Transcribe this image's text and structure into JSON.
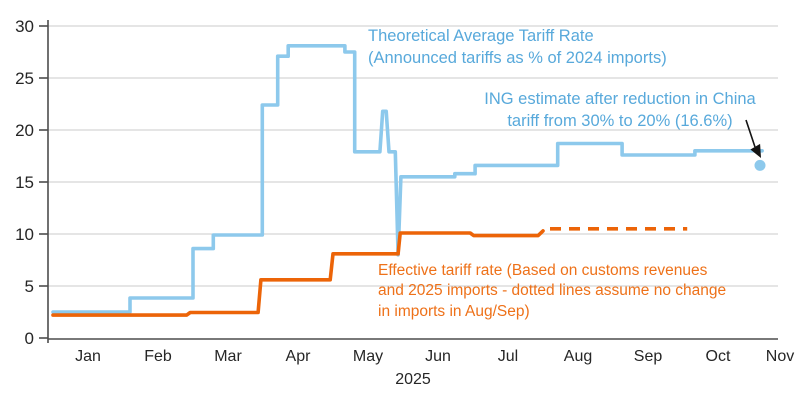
{
  "colors": {
    "blue_line": "#8DC9EC",
    "blue_text": "#58A9DB",
    "orange_line": "#EC6408",
    "orange_text": "#EE7119",
    "axis": "#4d4d4d",
    "grid": "#cbcbcb",
    "tick_text": "#262626",
    "arrow": "#141414"
  },
  "annotations": {
    "theoretical": {
      "line1": "Theoretical Average Tariff Rate",
      "line2": "(Announced tariffs as % of 2024 imports)"
    },
    "ing_estimate": {
      "line1": "ING estimate after reduction in China",
      "line2": "tariff from 30% to 20% (16.6%)"
    },
    "effective": {
      "line1": "Effective tariff rate (Based on customs revenues",
      "line2": "and 2025 imports - dotted lines assume no change",
      "line3": "in imports in Aug/Sep)"
    }
  },
  "chart_data": {
    "type": "line",
    "title": "",
    "x_unit_note": "x = months elapsed since 1 Jan 2025 (0 = Jan 1, 1 = Feb 1, ...)",
    "x_axis": {
      "tick_labels": [
        "Jan",
        "Feb",
        "Mar",
        "Apr",
        "May",
        "Jun",
        "Jul",
        "Aug",
        "Sep",
        "Oct",
        "Nov"
      ],
      "axis_label": "2025"
    },
    "y_axis": {
      "min": 0,
      "max": 30,
      "step": 5,
      "tick_labels": [
        "0",
        "5",
        "10",
        "15",
        "20",
        "25",
        "30"
      ]
    },
    "grid": true,
    "legend_position": "none (in-plot text annotations)",
    "series": [
      {
        "name": "Theoretical Average Tariff Rate (Announced tariffs as % of 2024 imports)",
        "style": "solid",
        "color_key": "blue_line",
        "points": [
          [
            0.0,
            2.5
          ],
          [
            1.1,
            2.5
          ],
          [
            1.1,
            3.85
          ],
          [
            2.0,
            3.85
          ],
          [
            2.0,
            8.6
          ],
          [
            2.29,
            8.6
          ],
          [
            2.29,
            9.9
          ],
          [
            2.99,
            9.9
          ],
          [
            2.99,
            22.4
          ],
          [
            3.21,
            22.4
          ],
          [
            3.21,
            27.1
          ],
          [
            3.36,
            27.1
          ],
          [
            3.36,
            28.1
          ],
          [
            4.17,
            28.1
          ],
          [
            4.17,
            27.5
          ],
          [
            4.31,
            27.5
          ],
          [
            4.31,
            17.9
          ],
          [
            4.67,
            17.9
          ],
          [
            4.71,
            21.8
          ],
          [
            4.76,
            21.8
          ],
          [
            4.8,
            17.9
          ],
          [
            4.89,
            17.9
          ],
          [
            4.93,
            8.0
          ],
          [
            4.97,
            15.5
          ],
          [
            5.74,
            15.5
          ],
          [
            5.74,
            15.8
          ],
          [
            6.03,
            15.8
          ],
          [
            6.03,
            16.6
          ],
          [
            7.21,
            16.6
          ],
          [
            7.21,
            18.7
          ],
          [
            8.13,
            18.7
          ],
          [
            8.13,
            17.6
          ],
          [
            9.17,
            17.6
          ],
          [
            9.17,
            18.0
          ],
          [
            10.13,
            18.0
          ]
        ]
      },
      {
        "name": "Effective tariff rate (Based on customs revenues and 2025 imports)",
        "style": "solid",
        "color_key": "orange_line",
        "points": [
          [
            0.0,
            2.2
          ],
          [
            1.91,
            2.2
          ],
          [
            1.96,
            2.45
          ],
          [
            2.93,
            2.45
          ],
          [
            2.97,
            5.6
          ],
          [
            3.96,
            5.6
          ],
          [
            4.0,
            8.1
          ],
          [
            4.93,
            8.1
          ],
          [
            4.96,
            10.1
          ],
          [
            5.96,
            10.1
          ],
          [
            6.01,
            9.85
          ],
          [
            6.93,
            9.85
          ],
          [
            7.0,
            10.3
          ]
        ]
      },
      {
        "name": "Effective tariff rate projection (dotted - assumes no change in imports in Aug/Sep)",
        "style": "dashed",
        "color_key": "orange_line",
        "points": [
          [
            7.1,
            10.5
          ],
          [
            9.06,
            10.5
          ]
        ]
      },
      {
        "name": "ING estimate after reduction in China tariff from 30% to 20%",
        "style": "point",
        "color_key": "blue_line",
        "points": [
          [
            10.1,
            16.6
          ]
        ]
      }
    ]
  }
}
